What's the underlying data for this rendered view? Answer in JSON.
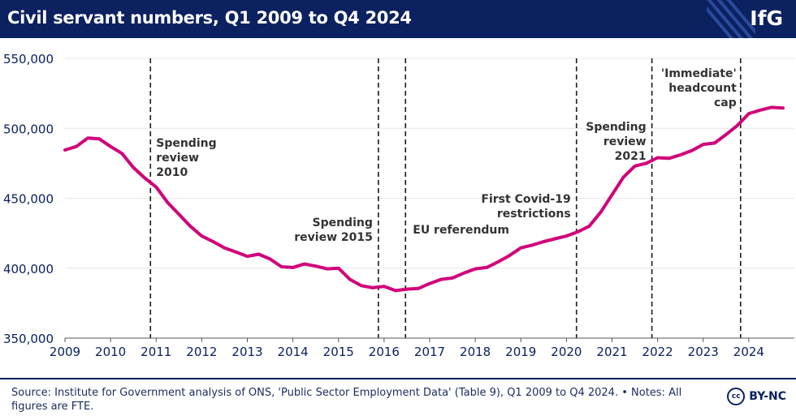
{
  "header": {
    "title": "Civil servant numbers, Q1 2009 to Q4 2024",
    "logo": "IfG"
  },
  "footer": {
    "source": "Source: Institute for Government analysis of ONS, 'Public Sector Employment Data' (Table 9), Q1 2009 to Q4 2024. • Notes: All figures are FTE.",
    "license_icon_text": "cc",
    "license": "BY-NC"
  },
  "colors": {
    "line": "#d1007a",
    "header_bg": "#0b2160",
    "text": "#0b2160",
    "grid": "#e6e6e6"
  },
  "chart_data": {
    "type": "line",
    "title": "Civil servant numbers, Q1 2009 to Q4 2024",
    "xlabel": "",
    "ylabel": "",
    "x_ticks": [
      2009,
      2010,
      2011,
      2012,
      2013,
      2014,
      2015,
      2016,
      2017,
      2018,
      2019,
      2020,
      2021,
      2022,
      2023,
      2024
    ],
    "xlim": [
      2009,
      2025
    ],
    "ylim": [
      350000,
      550000
    ],
    "y_ticks": [
      350000,
      400000,
      450000,
      500000,
      550000
    ],
    "y_tick_labels": [
      "350,000",
      "400,000",
      "450,000",
      "500,000",
      "550,000"
    ],
    "grid": true,
    "series": [
      {
        "name": "Civil servant numbers (FTE)",
        "x": [
          2009.0,
          2009.25,
          2009.5,
          2009.75,
          2010.0,
          2010.25,
          2010.5,
          2010.75,
          2011.0,
          2011.25,
          2011.5,
          2011.75,
          2012.0,
          2012.25,
          2012.5,
          2012.75,
          2013.0,
          2013.25,
          2013.5,
          2013.75,
          2014.0,
          2014.25,
          2014.5,
          2014.75,
          2015.0,
          2015.25,
          2015.5,
          2015.75,
          2016.0,
          2016.25,
          2016.5,
          2016.75,
          2017.0,
          2017.25,
          2017.5,
          2017.75,
          2018.0,
          2018.25,
          2018.5,
          2018.75,
          2019.0,
          2019.25,
          2019.5,
          2019.75,
          2020.0,
          2020.25,
          2020.5,
          2020.75,
          2021.0,
          2021.25,
          2021.5,
          2021.75,
          2022.0,
          2022.25,
          2022.5,
          2022.75,
          2023.0,
          2023.25,
          2023.5,
          2023.75,
          2024.0,
          2024.25,
          2024.5,
          2024.75
        ],
        "values": [
          484500,
          487000,
          493000,
          492500,
          487000,
          482000,
          472000,
          464500,
          458000,
          447000,
          438500,
          430000,
          423000,
          419000,
          414500,
          411500,
          408500,
          410000,
          406500,
          401000,
          400500,
          403000,
          401500,
          399500,
          400000,
          392000,
          387500,
          386000,
          387000,
          384000,
          385000,
          385500,
          389000,
          392000,
          393000,
          396500,
          399500,
          400500,
          404500,
          409000,
          414500,
          416500,
          419000,
          421000,
          423000,
          426000,
          430000,
          440000,
          452500,
          465000,
          473000,
          475000,
          479000,
          478500,
          481000,
          484000,
          488500,
          489500,
          495500,
          502000,
          510500,
          513000,
          515000,
          514500
        ]
      }
    ],
    "annotations": [
      {
        "x": 2010.875,
        "label_lines": [
          "Spending",
          "review",
          "2010"
        ]
      },
      {
        "x": 2015.875,
        "label_lines": [
          "Spending",
          "review 2015"
        ]
      },
      {
        "x": 2016.47,
        "label_lines": [
          "EU referendum"
        ]
      },
      {
        "x": 2020.22,
        "label_lines": [
          "First Covid-19",
          "restrictions"
        ]
      },
      {
        "x": 2021.875,
        "label_lines": [
          "Spending",
          "review",
          "2021"
        ]
      },
      {
        "x": 2023.82,
        "label_lines": [
          "'Immediate'",
          "headcount",
          "cap"
        ]
      }
    ]
  }
}
